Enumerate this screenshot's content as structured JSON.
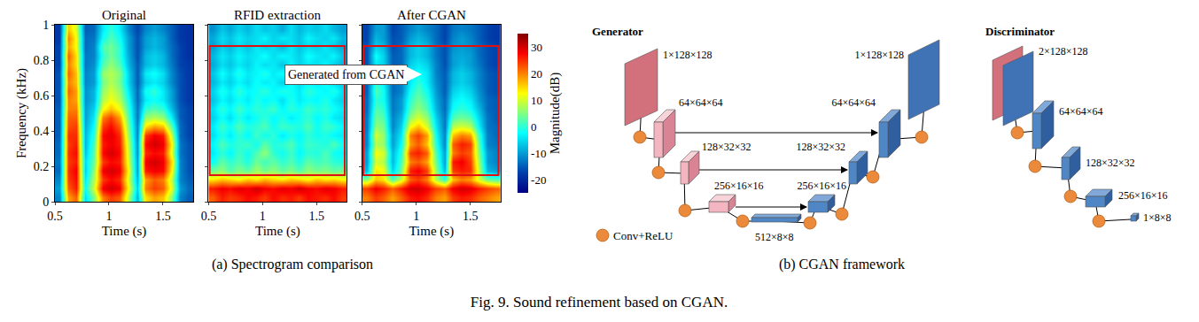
{
  "chart_data": [
    {
      "type": "heatmap",
      "title": "Original",
      "x_label": "Time (s)",
      "y_label": "Frequency (kHz)",
      "color": "Jet",
      "xlim": [
        0.5,
        1.78
      ],
      "xticks": [
        0.5,
        1,
        1.5
      ],
      "ylim": [
        0,
        1
      ],
      "yticks": [
        0,
        0.2,
        0.4,
        0.6,
        0.8,
        1
      ],
      "zlim": [
        -25,
        35
      ],
      "x": [
        0.54,
        0.62,
        0.7,
        0.78,
        0.86,
        0.94,
        1.02,
        1.1,
        1.18,
        1.26,
        1.34,
        1.42,
        1.5,
        1.58,
        1.66,
        1.74
      ],
      "y": [
        0.025,
        0.075,
        0.125,
        0.175,
        0.225,
        0.275,
        0.325,
        0.375,
        0.425,
        0.475,
        0.525,
        0.575,
        0.625,
        0.675,
        0.725,
        0.775,
        0.825,
        0.875,
        0.925,
        0.975
      ],
      "values": [
        [
          -12,
          18,
          22,
          -5,
          5,
          20,
          24,
          22,
          8,
          -8,
          14,
          18,
          16,
          5,
          -12,
          -15
        ],
        [
          -10,
          22,
          26,
          -2,
          10,
          28,
          30,
          28,
          12,
          -6,
          20,
          24,
          22,
          10,
          -10,
          -14
        ],
        [
          -12,
          24,
          27,
          -4,
          8,
          24,
          27,
          25,
          10,
          -8,
          18,
          22,
          20,
          8,
          -12,
          -15
        ],
        [
          -14,
          25,
          28,
          -6,
          6,
          28,
          30,
          28,
          12,
          -10,
          26,
          28,
          27,
          12,
          -12,
          -16
        ],
        [
          -13,
          24,
          26,
          -5,
          4,
          24,
          27,
          26,
          10,
          -10,
          28,
          30,
          28,
          14,
          -12,
          -16
        ],
        [
          -14,
          25,
          27,
          -7,
          3,
          27,
          30,
          27,
          9,
          -11,
          25,
          27,
          26,
          10,
          -13,
          -16
        ],
        [
          -14,
          24,
          26,
          -8,
          2,
          26,
          28,
          26,
          8,
          -11,
          27,
          30,
          28,
          12,
          -13,
          -16
        ],
        [
          -15,
          25,
          25,
          -8,
          0,
          27,
          29,
          25,
          6,
          -12,
          24,
          28,
          26,
          8,
          -14,
          -17
        ],
        [
          -15,
          23,
          24,
          -9,
          -2,
          24,
          27,
          22,
          4,
          -12,
          14,
          18,
          16,
          2,
          -14,
          -17
        ],
        [
          -15,
          22,
          22,
          -10,
          -4,
          20,
          24,
          18,
          2,
          -13,
          6,
          8,
          6,
          -4,
          -15,
          -17
        ],
        [
          -15,
          20,
          20,
          -10,
          -6,
          12,
          16,
          12,
          0,
          -13,
          0,
          2,
          0,
          -8,
          -15,
          -17
        ],
        [
          -16,
          20,
          18,
          -11,
          -8,
          8,
          12,
          8,
          -2,
          -14,
          -4,
          -2,
          -4,
          -10,
          -16,
          -18
        ],
        [
          -16,
          22,
          18,
          -11,
          -8,
          6,
          10,
          6,
          -4,
          -14,
          -2,
          0,
          -4,
          -10,
          -16,
          -18
        ],
        [
          -16,
          20,
          16,
          -12,
          -10,
          4,
          8,
          4,
          -6,
          -15,
          -6,
          -4,
          -6,
          -12,
          -16,
          -18
        ],
        [
          -16,
          22,
          16,
          -12,
          -10,
          6,
          8,
          5,
          -6,
          -15,
          -4,
          -2,
          -5,
          -12,
          -16,
          -18
        ],
        [
          -17,
          20,
          14,
          -13,
          -11,
          2,
          6,
          2,
          -8,
          -15,
          -8,
          -6,
          -8,
          -13,
          -17,
          -18
        ],
        [
          -17,
          22,
          14,
          -13,
          -12,
          0,
          4,
          0,
          -9,
          -16,
          -8,
          -6,
          -8,
          -14,
          -17,
          -19
        ],
        [
          -17,
          18,
          12,
          -14,
          -12,
          2,
          4,
          0,
          -10,
          -16,
          -10,
          -8,
          -10,
          -14,
          -17,
          -19
        ],
        [
          -18,
          20,
          12,
          -14,
          -13,
          -2,
          2,
          -2,
          -10,
          -16,
          -10,
          -8,
          -10,
          -15,
          -18,
          -19
        ],
        [
          -18,
          16,
          10,
          -15,
          -14,
          -4,
          0,
          -4,
          -12,
          -17,
          -12,
          -10,
          -12,
          -15,
          -18,
          -19
        ]
      ]
    },
    {
      "type": "heatmap",
      "title": "RFID extraction",
      "x_label": "Time (s)",
      "color": "Jet",
      "tick_labels": "x",
      "xlim": [
        0.5,
        1.78
      ],
      "xticks": [
        0.5,
        1,
        1.5
      ],
      "ylim": [
        0,
        1
      ],
      "yticks": [
        0,
        0.2,
        0.4,
        0.6,
        0.8,
        1
      ],
      "zlim": [
        -25,
        35
      ],
      "highlight": {
        "x": [
          0.51,
          1.76
        ],
        "y": [
          0.15,
          0.88
        ]
      },
      "x": [
        0.54,
        0.62,
        0.7,
        0.78,
        0.86,
        0.94,
        1.02,
        1.1,
        1.18,
        1.26,
        1.34,
        1.42,
        1.5,
        1.58,
        1.66,
        1.74
      ],
      "y": [
        0.025,
        0.075,
        0.125,
        0.175,
        0.225,
        0.275,
        0.325,
        0.375,
        0.425,
        0.475,
        0.525,
        0.575,
        0.625,
        0.675,
        0.725,
        0.775,
        0.825,
        0.875,
        0.925,
        0.975
      ],
      "values": [
        [
          22,
          26,
          24,
          25,
          27,
          26,
          24,
          27,
          25,
          26,
          24,
          27,
          26,
          25,
          27,
          24
        ],
        [
          26,
          28,
          27,
          29,
          28,
          30,
          28,
          27,
          29,
          28,
          30,
          28,
          27,
          29,
          28,
          26
        ],
        [
          14,
          16,
          15,
          13,
          16,
          14,
          17,
          15,
          14,
          16,
          15,
          13,
          16,
          14,
          15,
          13
        ],
        [
          4,
          6,
          2,
          5,
          3,
          7,
          4,
          6,
          3,
          5,
          2,
          6,
          4,
          5,
          3,
          4
        ],
        [
          -2,
          3,
          0,
          2,
          -1,
          4,
          1,
          3,
          0,
          2,
          -1,
          3,
          1,
          2,
          0,
          -1
        ],
        [
          -4,
          0,
          -3,
          1,
          -2,
          2,
          6,
          0,
          -2,
          1,
          -3,
          0,
          -1,
          2,
          -2,
          -3
        ],
        [
          -3,
          2,
          -1,
          0,
          1,
          -2,
          3,
          -1,
          0,
          2,
          -2,
          1,
          0,
          -1,
          2,
          -2
        ],
        [
          -5,
          -1,
          -4,
          0,
          -3,
          1,
          -2,
          0,
          -4,
          -1,
          -3,
          0,
          -2,
          -1,
          -3,
          -4
        ],
        [
          -4,
          1,
          -2,
          2,
          -1,
          0,
          2,
          -2,
          1,
          0,
          -1,
          2,
          -2,
          1,
          0,
          -3
        ],
        [
          -6,
          -2,
          -5,
          -1,
          -4,
          -2,
          0,
          -3,
          -1,
          -4,
          -2,
          0,
          -3,
          -1,
          -4,
          -5
        ],
        [
          -5,
          0,
          -3,
          1,
          -2,
          0,
          -1,
          1,
          -3,
          0,
          -2,
          1,
          -1,
          0,
          -2,
          -4
        ],
        [
          -7,
          -3,
          -5,
          -2,
          -4,
          -1,
          -3,
          -2,
          -5,
          -1,
          -4,
          -2,
          -3,
          -1,
          -4,
          -6
        ],
        [
          -6,
          -1,
          -4,
          0,
          -3,
          -2,
          0,
          -3,
          -1,
          -2,
          -4,
          0,
          -2,
          -3,
          -1,
          -5
        ],
        [
          -8,
          -4,
          -6,
          -3,
          -5,
          -2,
          -4,
          -3,
          -6,
          -2,
          -5,
          -3,
          -4,
          -2,
          -5,
          -7
        ],
        [
          -7,
          -2,
          -5,
          -1,
          -4,
          -3,
          -1,
          -4,
          -2,
          -3,
          -5,
          -1,
          -3,
          -4,
          -2,
          -6
        ],
        [
          -9,
          -5,
          -7,
          -4,
          -6,
          -3,
          -5,
          -4,
          -7,
          -3,
          -6,
          -4,
          -5,
          -3,
          -6,
          -8
        ],
        [
          -8,
          -4,
          -6,
          -3,
          -5,
          -4,
          -2,
          -5,
          -3,
          -4,
          -6,
          -2,
          -4,
          -5,
          -3,
          -7
        ],
        [
          -10,
          -6,
          -8,
          -5,
          -7,
          -4,
          -6,
          -5,
          -8,
          -4,
          -7,
          -5,
          -6,
          -4,
          -7,
          -9
        ],
        [
          -9,
          -5,
          -7,
          -4,
          -6,
          -5,
          -3,
          -6,
          -4,
          -5,
          -7,
          -3,
          -5,
          -6,
          -4,
          -8
        ],
        [
          -11,
          -7,
          -9,
          -6,
          -8,
          -5,
          -7,
          -6,
          -9,
          -5,
          -8,
          -6,
          -7,
          -5,
          -8,
          -10
        ]
      ]
    },
    {
      "type": "heatmap",
      "title": "After CGAN",
      "x_label": "Time (s)",
      "color": "Jet",
      "tick_labels": "x",
      "xlim": [
        0.5,
        1.78
      ],
      "xticks": [
        0.5,
        1,
        1.5
      ],
      "ylim": [
        0,
        1
      ],
      "yticks": [
        0,
        0.2,
        0.4,
        0.6,
        0.8,
        1
      ],
      "zlim": [
        -25,
        35
      ],
      "highlight": {
        "x": [
          0.51,
          1.76
        ],
        "y": [
          0.15,
          0.88
        ]
      },
      "annotation": "Generated from CGAN",
      "colorbar": {
        "title": "Magnitude(dB)",
        "range": [
          -25,
          35
        ],
        "ticks": [
          -20,
          -10,
          0,
          10,
          20,
          30
        ]
      },
      "x": [
        0.54,
        0.62,
        0.7,
        0.78,
        0.86,
        0.94,
        1.02,
        1.1,
        1.18,
        1.26,
        1.34,
        1.42,
        1.5,
        1.58,
        1.66,
        1.74
      ],
      "y": [
        0.025,
        0.075,
        0.125,
        0.175,
        0.225,
        0.275,
        0.325,
        0.375,
        0.425,
        0.475,
        0.525,
        0.575,
        0.625,
        0.675,
        0.725,
        0.775,
        0.825,
        0.875,
        0.925,
        0.975
      ],
      "values": [
        [
          20,
          24,
          22,
          18,
          22,
          26,
          27,
          25,
          20,
          18,
          24,
          26,
          25,
          22,
          20,
          18
        ],
        [
          24,
          28,
          26,
          22,
          26,
          30,
          30,
          28,
          24,
          22,
          28,
          30,
          29,
          26,
          24,
          22
        ],
        [
          6,
          16,
          14,
          2,
          10,
          22,
          24,
          20,
          8,
          0,
          16,
          20,
          18,
          10,
          4,
          2
        ],
        [
          -8,
          14,
          12,
          -6,
          4,
          26,
          28,
          24,
          6,
          -8,
          24,
          26,
          25,
          8,
          -8,
          -10
        ],
        [
          -10,
          10,
          8,
          -8,
          2,
          20,
          22,
          18,
          4,
          -10,
          26,
          28,
          24,
          6,
          -10,
          -12
        ],
        [
          -10,
          12,
          10,
          -8,
          0,
          24,
          26,
          22,
          2,
          -10,
          20,
          24,
          22,
          4,
          -10,
          -12
        ],
        [
          -12,
          8,
          6,
          -10,
          -2,
          18,
          22,
          16,
          0,
          -12,
          22,
          26,
          24,
          2,
          -12,
          -13
        ],
        [
          -12,
          10,
          6,
          -10,
          -4,
          20,
          24,
          18,
          -2,
          -12,
          16,
          20,
          18,
          0,
          -12,
          -14
        ],
        [
          -13,
          6,
          4,
          -12,
          -6,
          12,
          16,
          10,
          -4,
          -13,
          8,
          10,
          8,
          -4,
          -13,
          -14
        ],
        [
          -13,
          4,
          2,
          -12,
          -8,
          6,
          10,
          6,
          -6,
          -13,
          2,
          4,
          2,
          -6,
          -13,
          -15
        ],
        [
          -14,
          2,
          0,
          -13,
          -10,
          2,
          6,
          2,
          -8,
          -14,
          -2,
          0,
          -2,
          -8,
          -14,
          -15
        ],
        [
          -14,
          0,
          -2,
          -13,
          -10,
          0,
          4,
          0,
          -9,
          -14,
          -4,
          -2,
          -4,
          -10,
          -14,
          -15
        ],
        [
          -15,
          2,
          -2,
          -14,
          -12,
          -2,
          2,
          -2,
          -10,
          -15,
          -6,
          -4,
          -6,
          -11,
          -15,
          -16
        ],
        [
          -15,
          0,
          -4,
          -14,
          -12,
          -4,
          0,
          -4,
          -11,
          -15,
          -8,
          -6,
          -8,
          -12,
          -15,
          -16
        ],
        [
          -15,
          -2,
          -4,
          -15,
          -13,
          -4,
          -2,
          -4,
          -12,
          -15,
          -8,
          -6,
          -8,
          -12,
          -15,
          -16
        ],
        [
          -16,
          -4,
          -6,
          -15,
          -14,
          -6,
          -4,
          -6,
          -12,
          -16,
          -10,
          -8,
          -10,
          -13,
          -16,
          -17
        ],
        [
          -16,
          -2,
          -6,
          -15,
          -14,
          -8,
          -6,
          -8,
          -13,
          -16,
          -10,
          -9,
          -10,
          -14,
          -16,
          -17
        ],
        [
          -16,
          -6,
          -8,
          -16,
          -14,
          -8,
          -6,
          -8,
          -13,
          -16,
          -11,
          -10,
          -11,
          -14,
          -16,
          -17
        ],
        [
          -17,
          -8,
          -10,
          -16,
          -15,
          -10,
          -8,
          -10,
          -14,
          -17,
          -12,
          -10,
          -12,
          -15,
          -17,
          -18
        ],
        [
          -17,
          -10,
          -10,
          -17,
          -15,
          -12,
          -10,
          -12,
          -14,
          -17,
          -13,
          -12,
          -13,
          -15,
          -17,
          -18
        ]
      ]
    }
  ],
  "diagram": {
    "subcaption": "(b) CGAN framework",
    "legend_label": "Conv+ReLU",
    "generator": {
      "title": "Generator",
      "input": "1×128×128",
      "encoder": [
        "64×64×64",
        "128×32×32",
        "256×16×16"
      ],
      "bottleneck": "512×8×8",
      "decoder": [
        "256×16×16",
        "128×32×32",
        "64×64×64"
      ],
      "output": "1×128×128"
    },
    "discriminator": {
      "title": "Discriminator",
      "input": "2×128×128",
      "layers": [
        "64×64×64",
        "128×32×32",
        "256×16×16",
        "1×8×8"
      ]
    }
  },
  "figure": {
    "subcaption_a": "(a) Spectrogram comparison",
    "caption": "Fig. 9. Sound refinement based on CGAN."
  }
}
